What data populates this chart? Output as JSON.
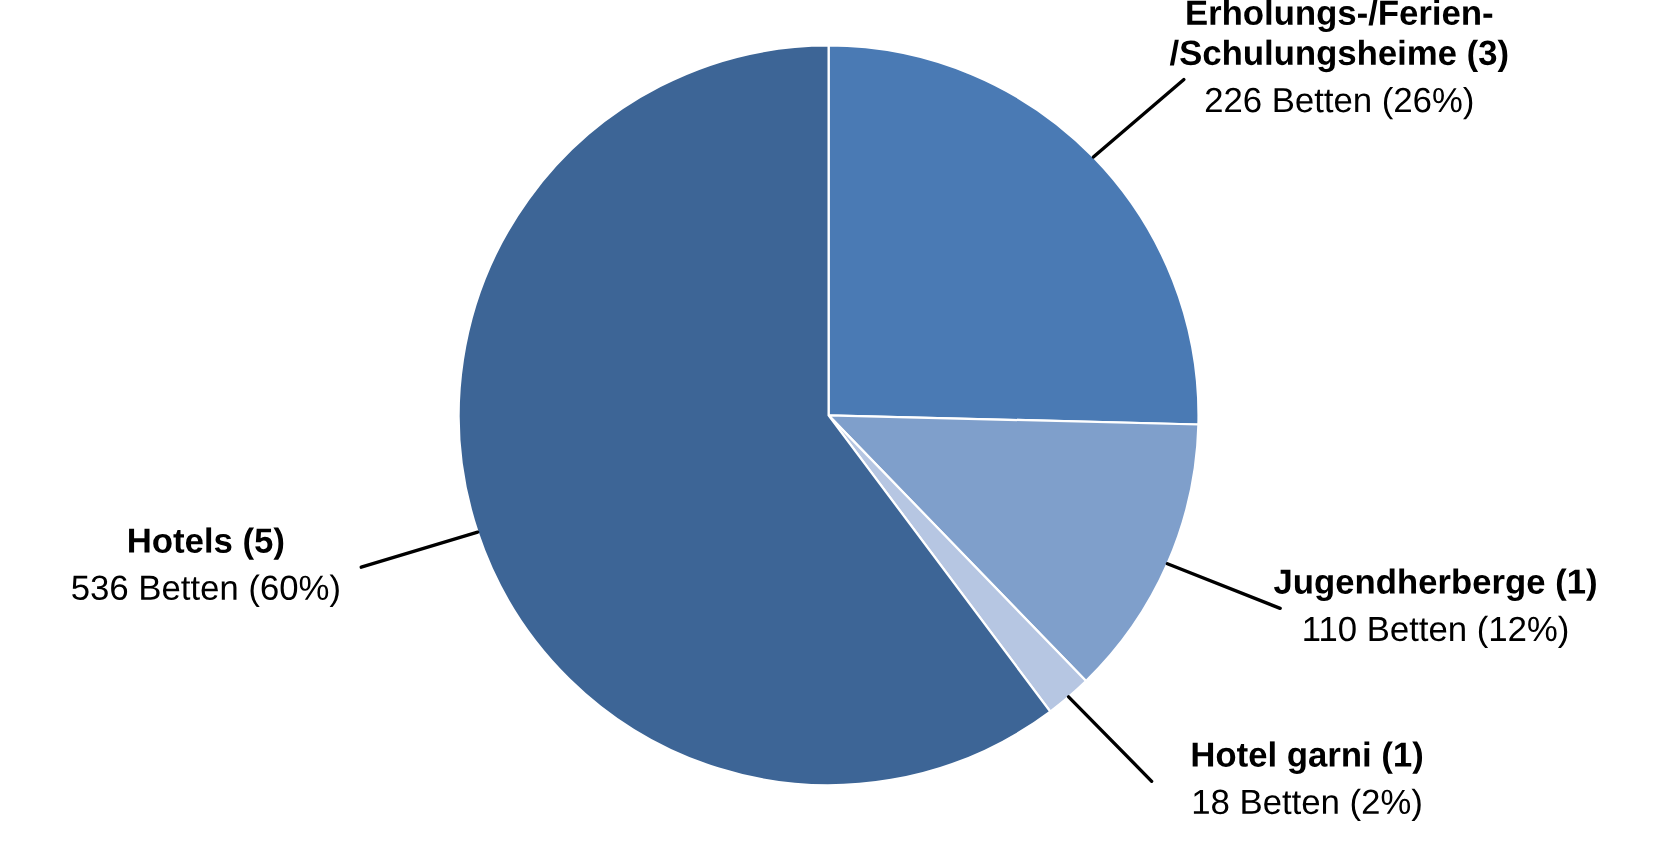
{
  "chart_data": {
    "type": "pie",
    "categories": [
      "Erholungs-/Ferien-\n/Schulungsheime (3)",
      "Jugendherberge (1)",
      "Hotel garni (1)",
      "Hotels (5)"
    ],
    "values": [
      226,
      110,
      18,
      536
    ],
    "value_labels": [
      "226 Betten (26%)",
      "110 Betten (12%)",
      "18 Betten (2%)",
      "536 Betten (60%)"
    ],
    "colors": [
      "#4a7ab4",
      "#7f9fcb",
      "#b6c6e2",
      "#3d6596"
    ],
    "legend": false
  }
}
